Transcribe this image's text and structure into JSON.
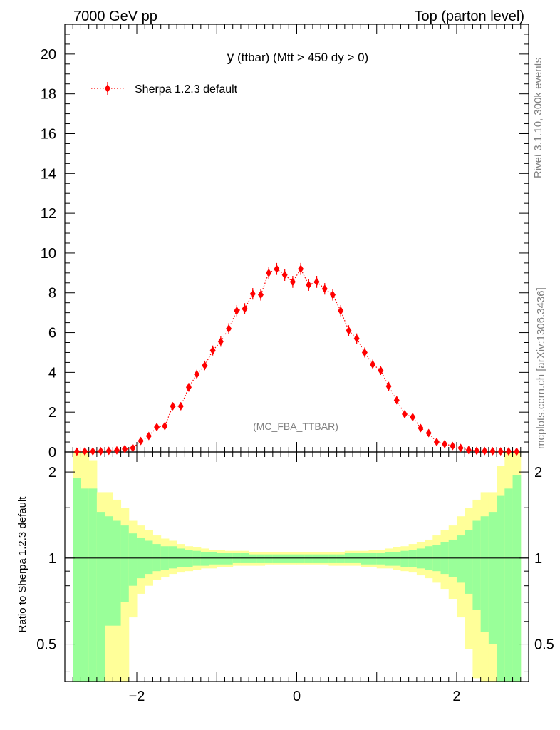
{
  "header": {
    "left": "7000 GeV pp",
    "right": "Top (parton level)"
  },
  "side_labels": {
    "rivet": "Rivet 3.1.10,  300k events",
    "mcplots": "mcplots.cern.ch [arXiv:1306.3436]"
  },
  "chart_data": [
    {
      "type": "scatter",
      "title_main": "y",
      "title_rest": "(ttbar) (Mtt > 450 dy > 0)",
      "watermark": "(MC_FBA_TTBAR)",
      "xlim": [
        -2.9,
        2.9
      ],
      "ylim": [
        0,
        21.5
      ],
      "y_ticks": [
        0,
        2,
        4,
        6,
        8,
        10,
        12,
        14,
        16,
        18,
        20
      ],
      "y_tick_labels": [
        "0",
        "2",
        "4",
        "6",
        "8",
        "10",
        "12",
        "14",
        "16",
        "18",
        "20"
      ],
      "legend_position": "top-left",
      "series": [
        {
          "name": "Sherpa 1.2.3 default",
          "color": "#ff0000",
          "marker": "diamond",
          "line": "dotted",
          "x": [
            -2.75,
            -2.65,
            -2.55,
            -2.45,
            -2.35,
            -2.25,
            -2.15,
            -2.05,
            -1.95,
            -1.85,
            -1.75,
            -1.65,
            -1.55,
            -1.45,
            -1.35,
            -1.25,
            -1.15,
            -1.05,
            -0.95,
            -0.85,
            -0.75,
            -0.65,
            -0.55,
            -0.45,
            -0.35,
            -0.25,
            -0.15,
            -0.05,
            0.05,
            0.15,
            0.25,
            0.35,
            0.45,
            0.55,
            0.65,
            0.75,
            0.85,
            0.95,
            1.05,
            1.15,
            1.25,
            1.35,
            1.45,
            1.55,
            1.65,
            1.75,
            1.85,
            1.95,
            2.05,
            2.15,
            2.25,
            2.35,
            2.45,
            2.55,
            2.65,
            2.75
          ],
          "y": [
            0.02,
            0.03,
            0.03,
            0.04,
            0.06,
            0.08,
            0.15,
            0.2,
            0.55,
            0.8,
            1.25,
            1.3,
            2.3,
            2.3,
            3.25,
            3.9,
            4.35,
            5.1,
            5.55,
            6.2,
            7.1,
            7.2,
            7.95,
            7.9,
            9.0,
            9.2,
            8.9,
            8.55,
            9.2,
            8.4,
            8.55,
            8.2,
            7.9,
            7.1,
            6.1,
            5.7,
            5.0,
            4.4,
            4.1,
            3.3,
            2.6,
            1.9,
            1.75,
            1.2,
            0.95,
            0.5,
            0.4,
            0.3,
            0.2,
            0.1,
            0.06,
            0.05,
            0.04,
            0.03,
            0.03,
            0.02
          ],
          "yerr": [
            0.05,
            0.05,
            0.05,
            0.05,
            0.05,
            0.07,
            0.08,
            0.1,
            0.12,
            0.14,
            0.16,
            0.17,
            0.19,
            0.2,
            0.22,
            0.23,
            0.24,
            0.25,
            0.26,
            0.27,
            0.28,
            0.28,
            0.29,
            0.29,
            0.3,
            0.3,
            0.3,
            0.3,
            0.3,
            0.3,
            0.3,
            0.29,
            0.29,
            0.28,
            0.27,
            0.26,
            0.25,
            0.24,
            0.23,
            0.22,
            0.2,
            0.19,
            0.17,
            0.16,
            0.14,
            0.12,
            0.1,
            0.09,
            0.08,
            0.07,
            0.06,
            0.05,
            0.05,
            0.05,
            0.05,
            0.05
          ]
        }
      ]
    },
    {
      "type": "area",
      "ylabel": "Ratio to Sherpa 1.2.3 default",
      "ylog": true,
      "ylim": [
        0.37,
        2.35
      ],
      "xlim": [
        -2.9,
        2.9
      ],
      "reference_line": 1,
      "x_ticks": [
        -2,
        0,
        2
      ],
      "x_tick_labels": [
        "−2",
        "0",
        "2"
      ],
      "y_ticks": [
        0.5,
        1,
        2
      ],
      "y_tick_labels": [
        "0.5",
        "1",
        "2"
      ],
      "bin_edges": [
        -2.8,
        -2.7,
        -2.6,
        -2.5,
        -2.4,
        -2.3,
        -2.2,
        -2.1,
        -2.0,
        -1.9,
        -1.8,
        -1.7,
        -1.6,
        -1.5,
        -1.4,
        -1.3,
        -1.2,
        -1.1,
        -1.0,
        -0.9,
        -0.8,
        -0.7,
        -0.6,
        -0.5,
        -0.4,
        -0.3,
        -0.2,
        -0.1,
        0.0,
        0.1,
        0.2,
        0.3,
        0.4,
        0.5,
        0.6,
        0.7,
        0.8,
        0.9,
        1.0,
        1.1,
        1.2,
        1.3,
        1.4,
        1.5,
        1.6,
        1.7,
        1.8,
        1.9,
        2.0,
        2.1,
        2.2,
        2.3,
        2.4,
        2.5,
        2.6,
        2.7,
        2.8
      ],
      "band_colors": {
        "inner": "#99ff99",
        "outer": "#ffff99"
      },
      "inner_upper": [
        1.9,
        1.75,
        1.75,
        1.45,
        1.4,
        1.35,
        1.3,
        1.22,
        1.18,
        1.15,
        1.12,
        1.1,
        1.1,
        1.08,
        1.07,
        1.06,
        1.05,
        1.05,
        1.04,
        1.04,
        1.04,
        1.04,
        1.03,
        1.03,
        1.03,
        1.03,
        1.03,
        1.03,
        1.03,
        1.03,
        1.03,
        1.03,
        1.03,
        1.03,
        1.04,
        1.04,
        1.04,
        1.04,
        1.04,
        1.05,
        1.05,
        1.06,
        1.07,
        1.08,
        1.1,
        1.11,
        1.14,
        1.16,
        1.2,
        1.25,
        1.35,
        1.4,
        1.45,
        1.65,
        1.75,
        1.95
      ],
      "outer_upper": [
        2.4,
        2.4,
        2.2,
        1.7,
        1.7,
        1.6,
        1.5,
        1.35,
        1.3,
        1.25,
        1.2,
        1.17,
        1.15,
        1.12,
        1.1,
        1.09,
        1.08,
        1.07,
        1.07,
        1.06,
        1.06,
        1.06,
        1.05,
        1.05,
        1.05,
        1.05,
        1.05,
        1.05,
        1.05,
        1.05,
        1.05,
        1.05,
        1.05,
        1.05,
        1.06,
        1.06,
        1.06,
        1.07,
        1.07,
        1.08,
        1.09,
        1.1,
        1.12,
        1.14,
        1.16,
        1.2,
        1.25,
        1.3,
        1.4,
        1.5,
        1.6,
        1.7,
        1.7,
        2.1,
        2.4,
        2.4
      ],
      "inner_lower": [
        0.36,
        0.36,
        0.36,
        0.36,
        0.58,
        0.58,
        0.7,
        0.8,
        0.85,
        0.88,
        0.9,
        0.91,
        0.92,
        0.93,
        0.93,
        0.94,
        0.94,
        0.95,
        0.95,
        0.95,
        0.96,
        0.96,
        0.96,
        0.96,
        0.96,
        0.96,
        0.96,
        0.96,
        0.96,
        0.96,
        0.96,
        0.96,
        0.96,
        0.96,
        0.96,
        0.96,
        0.95,
        0.95,
        0.95,
        0.94,
        0.94,
        0.93,
        0.93,
        0.92,
        0.91,
        0.9,
        0.88,
        0.86,
        0.82,
        0.75,
        0.66,
        0.55,
        0.5,
        0.36,
        0.36,
        0.36
      ],
      "outer_lower": [
        0.36,
        0.36,
        0.36,
        0.36,
        0.36,
        0.36,
        0.36,
        0.62,
        0.75,
        0.8,
        0.84,
        0.86,
        0.88,
        0.89,
        0.9,
        0.91,
        0.92,
        0.92,
        0.93,
        0.93,
        0.94,
        0.94,
        0.94,
        0.94,
        0.95,
        0.95,
        0.95,
        0.95,
        0.95,
        0.95,
        0.95,
        0.95,
        0.94,
        0.94,
        0.94,
        0.94,
        0.93,
        0.93,
        0.92,
        0.92,
        0.91,
        0.9,
        0.89,
        0.87,
        0.85,
        0.82,
        0.78,
        0.72,
        0.62,
        0.48,
        0.38,
        0.36,
        0.36,
        0.36,
        0.36,
        0.36
      ]
    }
  ]
}
